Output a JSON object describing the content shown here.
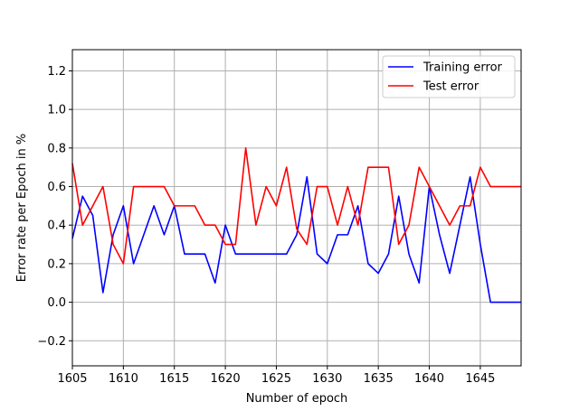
{
  "chart_data": {
    "type": "line",
    "title": "",
    "xlabel": "Number of epoch",
    "ylabel": "Error rate per Epoch in %",
    "xlim": [
      1605,
      1649
    ],
    "ylim": [
      -0.33,
      1.31
    ],
    "xticks": [
      1605,
      1610,
      1615,
      1620,
      1625,
      1630,
      1635,
      1640,
      1645
    ],
    "yticks": [
      -0.2,
      0.0,
      0.2,
      0.4,
      0.6,
      0.8,
      1.0,
      1.2
    ],
    "xtick_labels": [
      "1605",
      "1610",
      "1615",
      "1620",
      "1625",
      "1630",
      "1635",
      "1640",
      "1645"
    ],
    "ytick_labels": [
      "−0.2",
      "0.0",
      "0.2",
      "0.4",
      "0.6",
      "0.8",
      "1.0",
      "1.2"
    ],
    "grid": true,
    "legend_position": "top-right",
    "x": [
      1605,
      1606,
      1607,
      1608,
      1609,
      1610,
      1611,
      1612,
      1613,
      1614,
      1615,
      1616,
      1617,
      1618,
      1619,
      1620,
      1621,
      1622,
      1623,
      1624,
      1625,
      1626,
      1627,
      1628,
      1629,
      1630,
      1631,
      1632,
      1633,
      1634,
      1635,
      1636,
      1637,
      1638,
      1639,
      1640,
      1641,
      1642,
      1643,
      1644,
      1645,
      1646,
      1647,
      1648,
      1649
    ],
    "series": [
      {
        "name": "Training error",
        "color": "#0000ff",
        "values": [
          0.33,
          0.55,
          0.45,
          0.05,
          0.35,
          0.5,
          0.2,
          0.35,
          0.5,
          0.35,
          0.5,
          0.25,
          0.25,
          0.25,
          0.1,
          0.4,
          0.25,
          0.25,
          0.25,
          0.25,
          0.25,
          0.25,
          0.35,
          0.65,
          0.25,
          0.2,
          0.35,
          0.35,
          0.5,
          0.2,
          0.15,
          0.25,
          0.55,
          0.25,
          0.1,
          0.6,
          0.35,
          0.15,
          0.4,
          0.65,
          0.3,
          0.0,
          0.0,
          0.0,
          0.0
        ]
      },
      {
        "name": "Test error",
        "color": "#ff0000",
        "values": [
          0.72,
          0.4,
          0.5,
          0.6,
          0.3,
          0.2,
          0.6,
          0.6,
          0.6,
          0.6,
          0.5,
          0.5,
          0.5,
          0.4,
          0.4,
          0.3,
          0.3,
          0.8,
          0.4,
          0.6,
          0.5,
          0.7,
          0.38,
          0.3,
          0.6,
          0.6,
          0.4,
          0.6,
          0.4,
          0.7,
          0.7,
          0.7,
          0.3,
          0.4,
          0.7,
          0.6,
          0.5,
          0.4,
          0.5,
          0.5,
          0.7,
          0.6,
          0.6,
          0.6,
          0.6
        ]
      }
    ]
  }
}
